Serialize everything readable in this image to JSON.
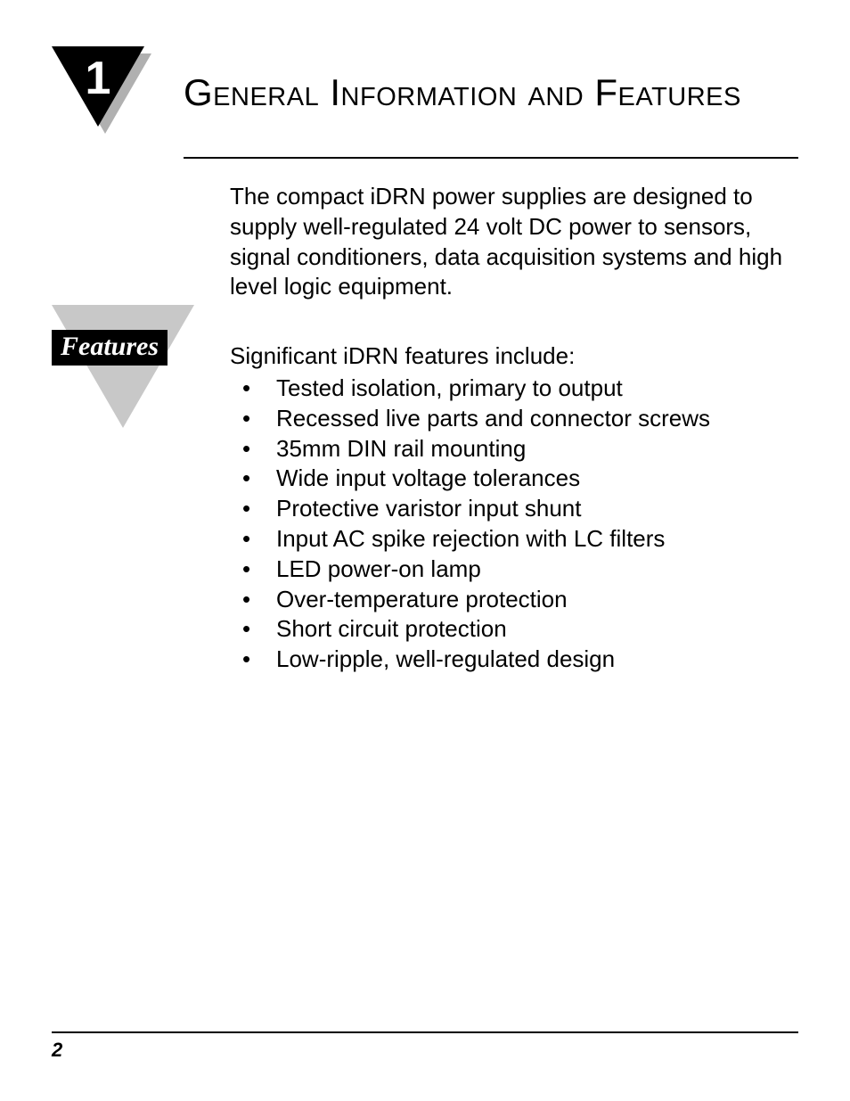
{
  "chapter": {
    "number": "1",
    "title": "General Information and Features"
  },
  "intro_paragraph": "The compact iDRN power supplies are designed to supply well-regulated 24 volt DC power to sensors, signal conditioners, data acquisition systems and high level logic equipment.",
  "features": {
    "label": "Features",
    "intro": "Significant iDRN features include:",
    "items": [
      "Tested isolation, primary to output",
      "Recessed live parts and connector screws",
      "35mm DIN rail mounting",
      "Wide input voltage tolerances",
      "Protective varistor input shunt",
      "Input AC spike rejection with LC filters",
      "LED power-on lamp",
      "Over-temperature protection",
      "Short circuit protection",
      "Low-ripple, well-regulated design"
    ]
  },
  "page_number": "2",
  "colors": {
    "text": "#000000",
    "background": "#ffffff",
    "badge_shadow": "#b0b0b0",
    "features_triangle": "#c8c8c8",
    "badge_fill": "#000000",
    "badge_text": "#ffffff"
  },
  "typography": {
    "title_fontsize": 42,
    "body_fontsize": 26,
    "badge_number_fontsize": 52,
    "features_label_fontsize": 30,
    "page_number_fontsize": 22
  }
}
